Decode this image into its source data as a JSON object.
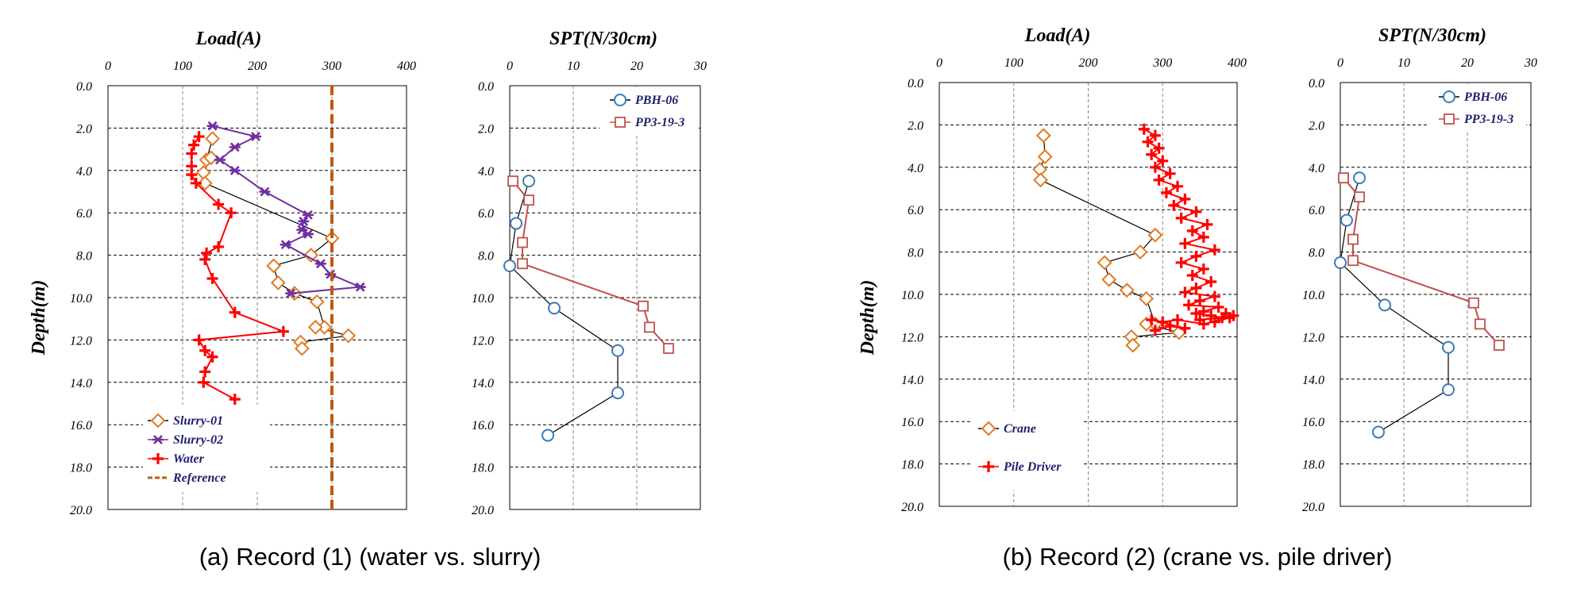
{
  "colors": {
    "slurry01": "#e07b22",
    "slurry02": "#7030a0",
    "water": "#ff0000",
    "reference": "#c05a10",
    "pbh": "#3d7ab8",
    "pp": "#c0504d",
    "black": "#000000"
  },
  "chart_data": [
    {
      "type": "line",
      "panel": "a-load",
      "title": "Load(A)",
      "ylabel": "Depth(m)",
      "xlim": [
        0,
        400
      ],
      "ylim": [
        0,
        20
      ],
      "xticks": [
        "0",
        "100",
        "200",
        "300",
        "400"
      ],
      "yticks": [
        "0.0",
        "2.0",
        "4.0",
        "6.0",
        "8.0",
        "10.0",
        "12.0",
        "14.0",
        "16.0",
        "18.0",
        "20.0"
      ],
      "legend_position": "bottom-left",
      "series": [
        {
          "name": "Slurry-01",
          "marker": "diamond",
          "color": "#e07b22",
          "line": "#000000",
          "x": [
            140,
            132,
            138,
            128,
            130,
            300,
            272,
            222,
            228,
            250,
            280,
            290,
            278,
            322,
            258,
            260
          ],
          "y": [
            2.5,
            3.5,
            3.4,
            4.1,
            4.6,
            7.2,
            8.0,
            8.5,
            9.3,
            9.8,
            10.2,
            11.4,
            11.4,
            11.8,
            12.1,
            12.4
          ]
        },
        {
          "name": "Slurry-02",
          "marker": "asterisk",
          "color": "#7030a0",
          "line": "#7030a0",
          "x": [
            140,
            198,
            170,
            150,
            170,
            210,
            268,
            262,
            260,
            268,
            238,
            285,
            298,
            338,
            245
          ],
          "y": [
            1.9,
            2.4,
            2.9,
            3.5,
            4.0,
            5.0,
            6.1,
            6.4,
            6.8,
            7.0,
            7.5,
            8.4,
            8.9,
            9.5,
            9.8
          ]
        },
        {
          "name": "Water",
          "marker": "plus",
          "color": "#ff0000",
          "line": "#ff0000",
          "x": [
            122,
            115,
            112,
            112,
            112,
            118,
            148,
            165,
            148,
            132,
            130,
            140,
            170,
            235,
            122,
            130,
            140,
            130,
            128,
            170
          ],
          "y": [
            2.4,
            2.8,
            3.2,
            3.8,
            4.2,
            4.6,
            5.6,
            6.0,
            7.6,
            7.9,
            8.2,
            9.1,
            10.7,
            11.6,
            12.0,
            12.5,
            12.8,
            13.5,
            14.0,
            14.8
          ]
        },
        {
          "name": "Reference",
          "style": "dashed",
          "color": "#c05a10",
          "x": [
            300,
            300
          ],
          "y": [
            0,
            20
          ]
        }
      ]
    },
    {
      "type": "line",
      "panel": "a-spt",
      "title": "SPT(N/30cm)",
      "xlim": [
        0,
        30
      ],
      "ylim": [
        0,
        20
      ],
      "xticks": [
        "0",
        "10",
        "20",
        "30"
      ],
      "yticks": [
        "0.0",
        "2.0",
        "4.0",
        "6.0",
        "8.0",
        "10.0",
        "12.0",
        "14.0",
        "16.0",
        "18.0",
        "20.0"
      ],
      "legend_position": "top-right",
      "series": [
        {
          "name": "PBH-06",
          "marker": "circle",
          "color": "#3d7ab8",
          "line": "#000000",
          "x": [
            3,
            1,
            0,
            7,
            17,
            17,
            6
          ],
          "y": [
            4.5,
            6.5,
            8.5,
            10.5,
            12.5,
            14.5,
            16.5
          ]
        },
        {
          "name": "PP3-19-3",
          "marker": "square",
          "color": "#c0504d",
          "line": "#c0504d",
          "x": [
            0.5,
            3,
            2,
            2,
            21,
            22,
            25
          ],
          "y": [
            4.5,
            5.4,
            7.4,
            8.4,
            10.4,
            11.4,
            12.4
          ]
        }
      ]
    },
    {
      "type": "line",
      "panel": "b-load",
      "title": "Load(A)",
      "ylabel": "Depth(m)",
      "xlim": [
        0,
        400
      ],
      "ylim": [
        0,
        20
      ],
      "xticks": [
        "0",
        "100",
        "200",
        "300",
        "400"
      ],
      "yticks": [
        "0.0",
        "2.0",
        "4.0",
        "6.0",
        "8.0",
        "10.0",
        "12.0",
        "14.0",
        "16.0",
        "18.0",
        "20.0"
      ],
      "legend_position": "bottom-left",
      "series": [
        {
          "name": "Crane",
          "marker": "diamond",
          "color": "#e07b22",
          "line": "#000000",
          "x": [
            140,
            142,
            135,
            136,
            290,
            270,
            222,
            228,
            252,
            278,
            290,
            278,
            322,
            258,
            260
          ],
          "y": [
            2.5,
            3.5,
            4.1,
            4.6,
            7.2,
            8.0,
            8.5,
            9.3,
            9.8,
            10.2,
            11.4,
            11.4,
            11.8,
            12.0,
            12.4
          ]
        },
        {
          "name": "Pile Driver",
          "marker": "plus",
          "color": "#ff0000",
          "line": "#ff0000",
          "x": [
            275,
            290,
            280,
            295,
            285,
            300,
            290,
            310,
            295,
            320,
            305,
            330,
            315,
            345,
            325,
            360,
            340,
            355,
            330,
            370,
            345,
            325,
            355,
            340,
            365,
            345,
            330,
            370,
            350,
            335,
            375,
            355,
            345,
            365,
            380,
            350,
            395,
            385,
            370,
            390,
            355,
            320,
            300,
            285,
            330,
            310,
            290
          ],
          "y": [
            2.2,
            2.5,
            2.8,
            3.1,
            3.4,
            3.7,
            4.0,
            4.3,
            4.6,
            4.9,
            5.2,
            5.5,
            5.8,
            6.1,
            6.4,
            6.7,
            7.0,
            7.3,
            7.6,
            7.9,
            8.2,
            8.5,
            8.8,
            9.1,
            9.4,
            9.7,
            9.9,
            10.1,
            10.3,
            10.5,
            10.6,
            10.8,
            10.9,
            11.0,
            11.1,
            11.2,
            11.0,
            10.9,
            11.3,
            11.1,
            11.4,
            11.2,
            11.3,
            11.2,
            11.6,
            11.5,
            11.7
          ]
        }
      ]
    },
    {
      "type": "line",
      "panel": "b-spt",
      "title": "SPT(N/30cm)",
      "xlim": [
        0,
        30
      ],
      "ylim": [
        0,
        20
      ],
      "xticks": [
        "0",
        "10",
        "20",
        "30"
      ],
      "yticks": [
        "0.0",
        "2.0",
        "4.0",
        "6.0",
        "8.0",
        "10.0",
        "12.0",
        "14.0",
        "16.0",
        "18.0",
        "20.0"
      ],
      "legend_position": "top-right",
      "series": [
        {
          "name": "PBH-06",
          "marker": "circle",
          "color": "#3d7ab8",
          "line": "#000000",
          "x": [
            3,
            1,
            0,
            7,
            17,
            17,
            6
          ],
          "y": [
            4.5,
            6.5,
            8.5,
            10.5,
            12.5,
            14.5,
            16.5
          ]
        },
        {
          "name": "PP3-19-3",
          "marker": "square",
          "color": "#c0504d",
          "line": "#c0504d",
          "x": [
            0.5,
            3,
            2,
            2,
            21,
            22,
            25
          ],
          "y": [
            4.5,
            5.4,
            7.4,
            8.4,
            10.4,
            11.4,
            12.4
          ]
        }
      ]
    }
  ],
  "captions": {
    "a": "(a) Record (1) (water vs. slurry)",
    "b": "(b) Record (2) (crane vs. pile driver)"
  }
}
